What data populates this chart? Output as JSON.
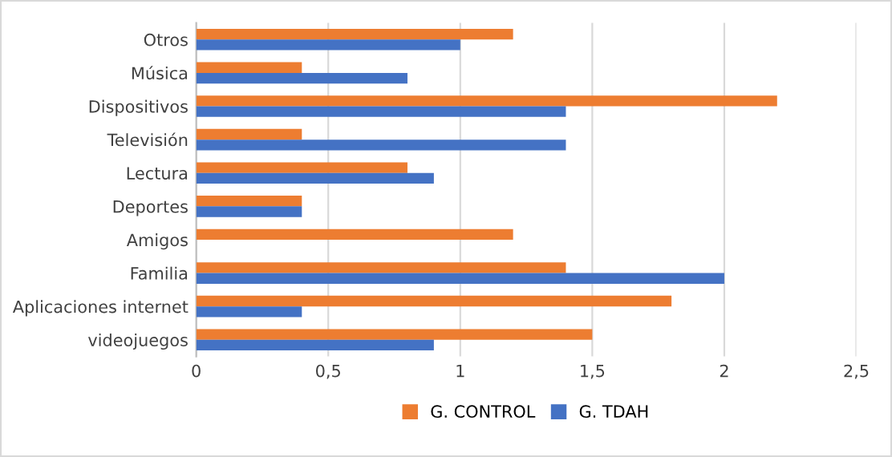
{
  "chart_data": {
    "type": "bar",
    "orientation": "horizontal",
    "categories": [
      "Otros",
      "Música",
      "Dispositivos",
      "Televisión",
      "Lectura",
      "Deportes",
      "Amigos",
      "Familia",
      "Aplicaciones internet",
      "videojuegos"
    ],
    "series": [
      {
        "name": "G. CONTROL",
        "color": "#ed7d31",
        "values": [
          1.2,
          0.4,
          2.2,
          0.4,
          0.8,
          0.4,
          1.2,
          1.4,
          1.8,
          1.5
        ]
      },
      {
        "name": "G. TDAH",
        "color": "#4472c4",
        "values": [
          1.0,
          0.8,
          1.4,
          1.4,
          0.9,
          0.4,
          0,
          2.0,
          0.4,
          0.9
        ]
      }
    ],
    "xlim": [
      0,
      2.5
    ],
    "xticks": [
      0,
      {
        "value": 0.5,
        "label": "0,5"
      },
      1,
      {
        "value": 1.5,
        "label": "1,5"
      },
      2,
      {
        "value": 2.5,
        "label": "2,5"
      }
    ],
    "grid": "x",
    "legend": "bottom"
  }
}
